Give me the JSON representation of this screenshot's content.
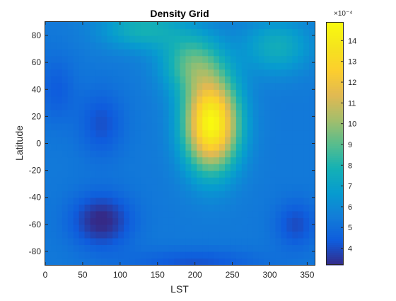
{
  "chart_data": {
    "type": "heatmap",
    "title": "Density Grid",
    "xlabel": "LST",
    "ylabel": "Latitude",
    "xlim": [
      0,
      360
    ],
    "ylim": [
      -90,
      90
    ],
    "x_ticks": [
      "0",
      "50",
      "100",
      "150",
      "200",
      "250",
      "300",
      "350"
    ],
    "y_ticks": [
      "-80",
      "-60",
      "-40",
      "-20",
      "0",
      "20",
      "40",
      "60",
      "80"
    ],
    "colorbar": {
      "colormap": "parula",
      "exponent_label": "×10⁻⁴",
      "clim": [
        3.2,
        14.9
      ],
      "ticks": [
        "4",
        "5",
        "6",
        "7",
        "8",
        "9",
        "10",
        "11",
        "12",
        "13",
        "14"
      ]
    },
    "grid_resolution": {
      "lst_step": 7.5,
      "lat_step": 5
    },
    "value_model": {
      "base": 5.4,
      "features": [
        {
          "kind": "high",
          "lst": 222,
          "lat": 15,
          "sigma_lst": 36,
          "sigma_lat": 34,
          "amplitude": 9.4
        },
        {
          "kind": "high",
          "lst": 195,
          "lat": 60,
          "sigma_lst": 40,
          "sigma_lat": 22,
          "amplitude": 3.2
        },
        {
          "kind": "high",
          "lst": 310,
          "lat": 72,
          "sigma_lst": 45,
          "sigma_lat": 20,
          "amplitude": 2.2
        },
        {
          "kind": "high",
          "lst": 130,
          "lat": 85,
          "sigma_lst": 55,
          "sigma_lat": 15,
          "amplitude": 2.4
        },
        {
          "kind": "low",
          "lst": 75,
          "lat": -57,
          "sigma_lst": 40,
          "sigma_lat": 20,
          "amplitude": -2.3
        },
        {
          "kind": "low",
          "lst": 335,
          "lat": -60,
          "sigma_lst": 28,
          "sigma_lat": 18,
          "amplitude": -1.4
        },
        {
          "kind": "low",
          "lst": 75,
          "lat": 15,
          "sigma_lst": 30,
          "sigma_lat": 25,
          "amplitude": -1.3
        },
        {
          "kind": "low",
          "lst": 15,
          "lat": 40,
          "sigma_lst": 25,
          "sigma_lat": 25,
          "amplitude": -1.0
        },
        {
          "kind": "low",
          "lst": 200,
          "lat": -88,
          "sigma_lst": 90,
          "sigma_lat": 10,
          "amplitude": -1.2
        }
      ]
    }
  }
}
